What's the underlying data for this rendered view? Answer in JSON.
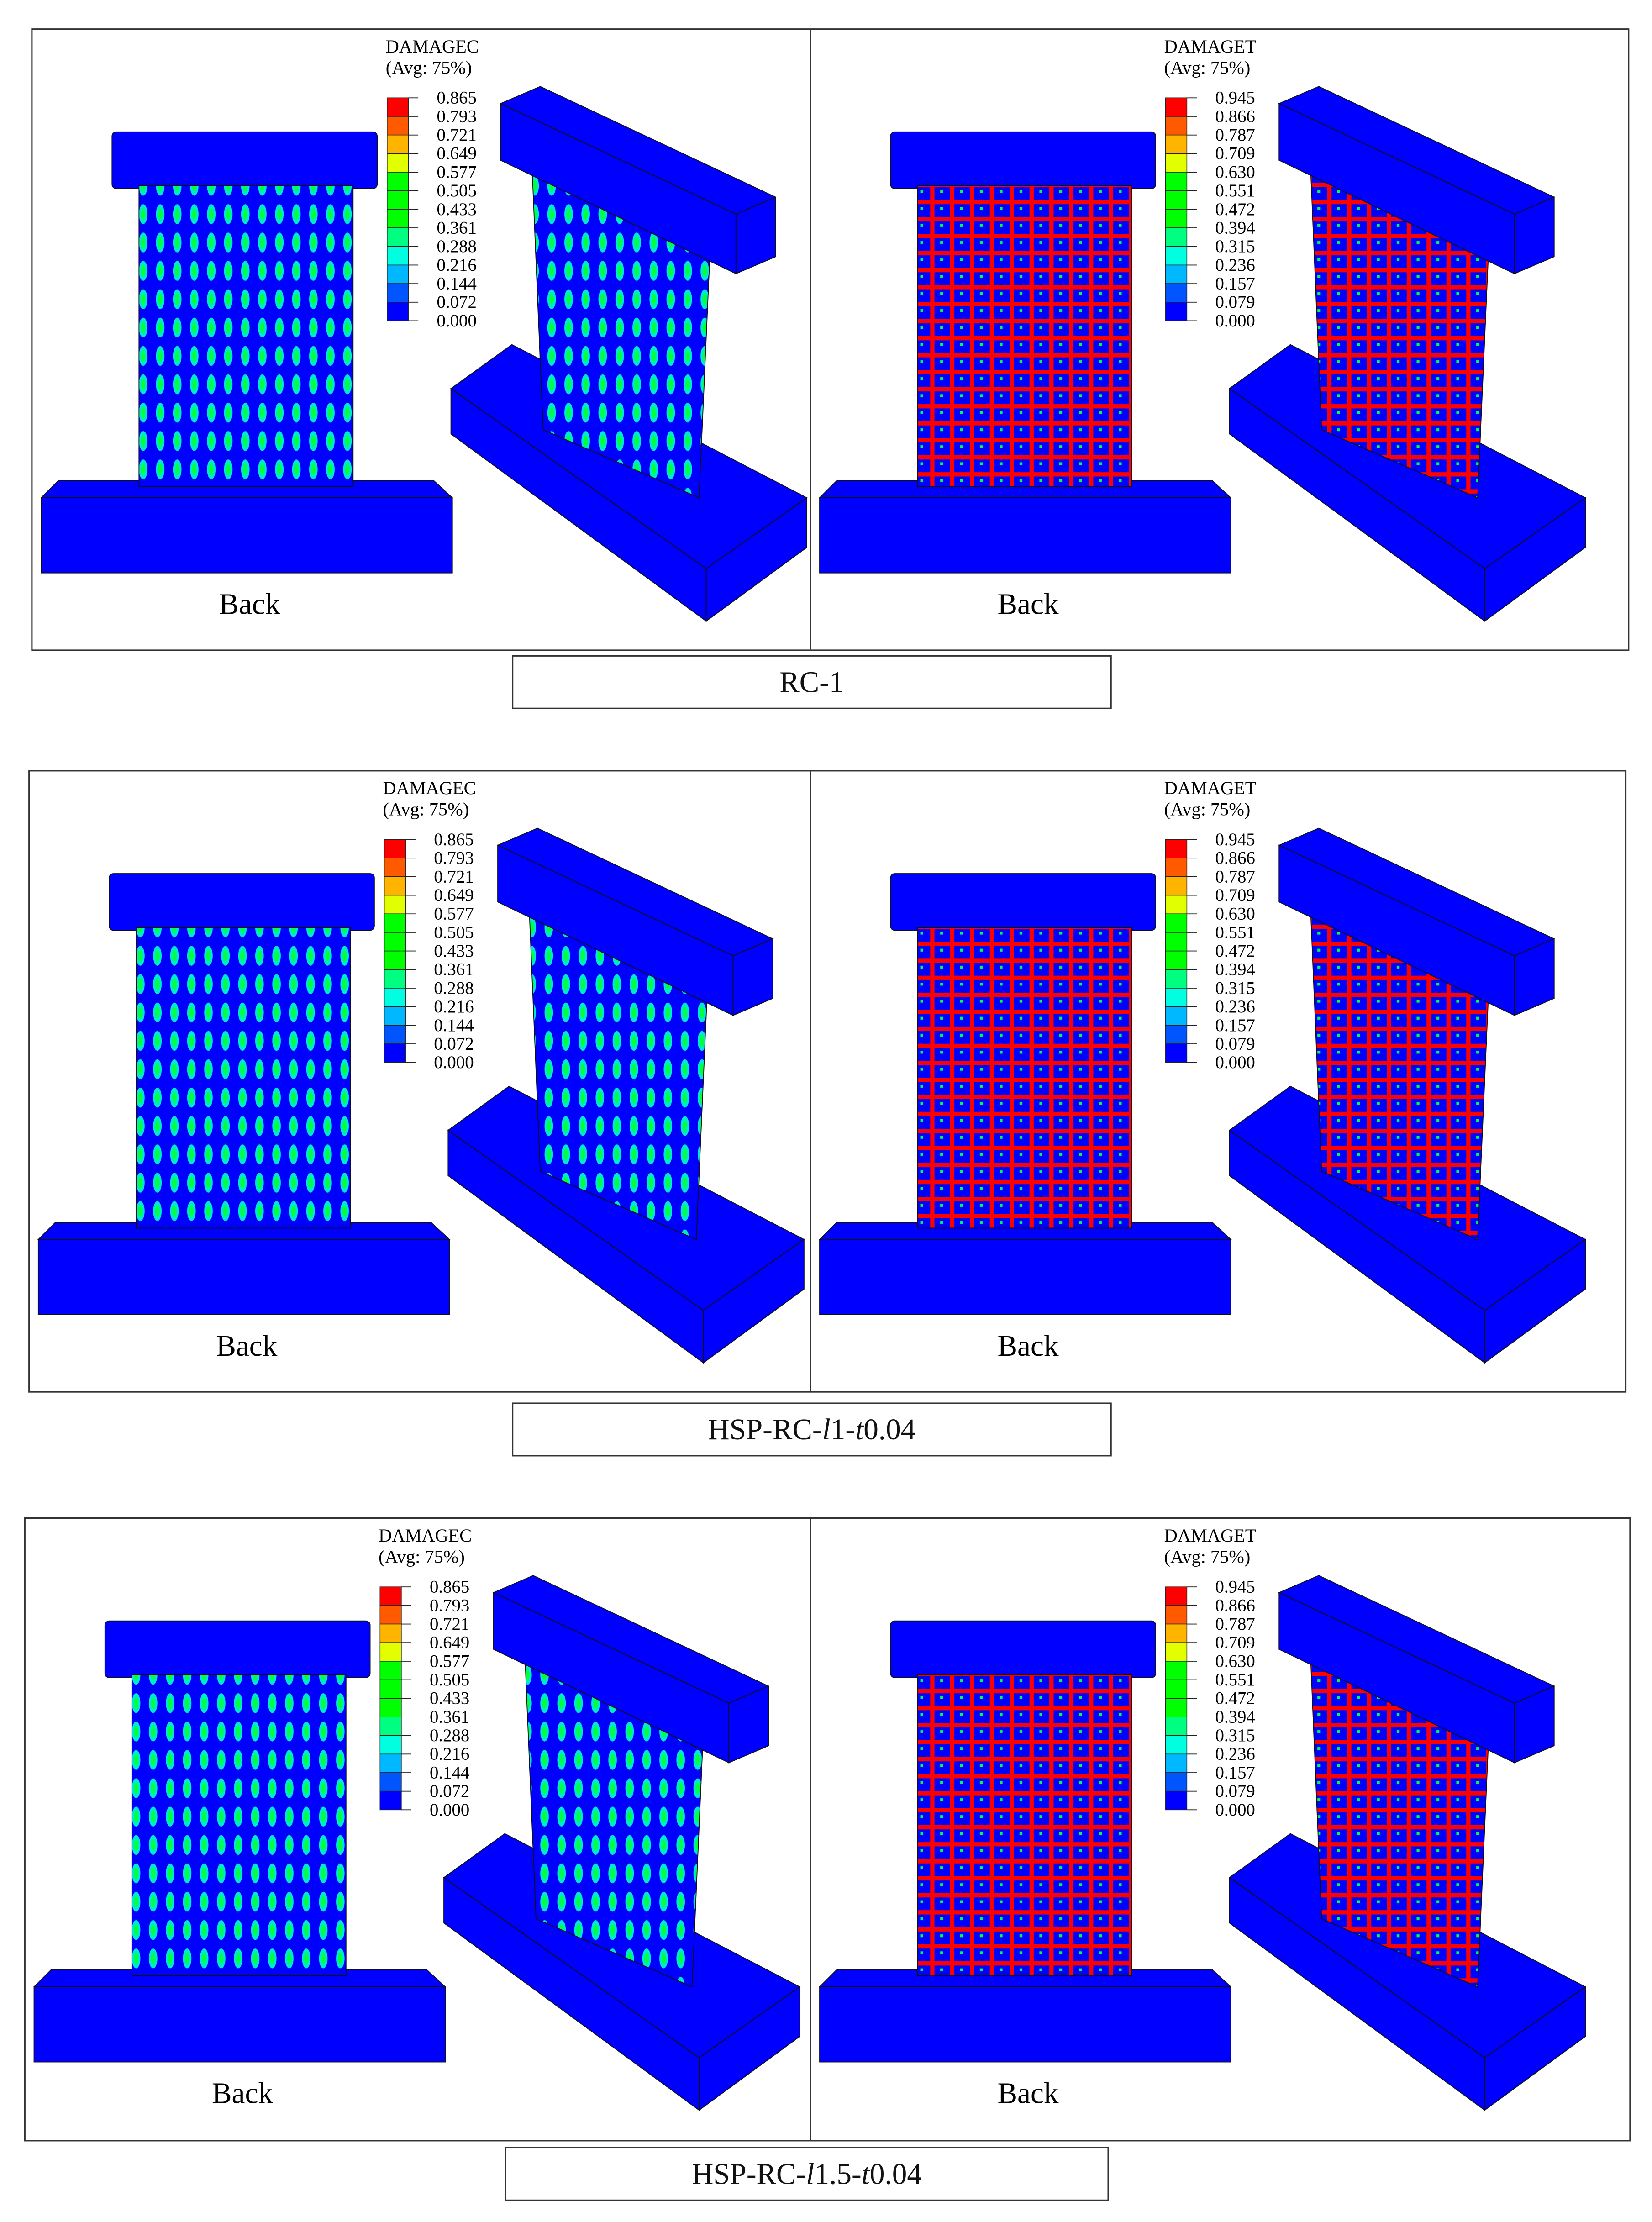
{
  "colors": {
    "legend": [
      "#ff0000",
      "#ff5a00",
      "#ffb400",
      "#e1ff00",
      "#00ff00",
      "#00ff00",
      "#00ff00",
      "#00ff80",
      "#00ffe0",
      "#00b8ff",
      "#0055ff",
      "#0000ff"
    ],
    "concrete": "#0000ff",
    "damage_c_primary": "#00ff40",
    "damage_c_secondary": "#00e8d0",
    "damage_t": "#ff0000"
  },
  "rows": [
    {
      "caption": [
        {
          "text": "RC-1",
          "italic": false
        }
      ],
      "panels": [
        {
          "type": "compression",
          "legend_title": "DAMAGEC",
          "legend_avg": "(Avg: 75%)",
          "legend_values": [
            "0.865",
            "0.793",
            "0.721",
            "0.649",
            "0.577",
            "0.505",
            "0.433",
            "0.361",
            "0.288",
            "0.216",
            "0.144",
            "0.072",
            "0.000"
          ],
          "view_label": "Back"
        },
        {
          "type": "tension",
          "legend_title": "DAMAGET",
          "legend_avg": "(Avg: 75%)",
          "legend_values": [
            "0.945",
            "0.866",
            "0.787",
            "0.709",
            "0.630",
            "0.551",
            "0.472",
            "0.394",
            "0.315",
            "0.236",
            "0.157",
            "0.079",
            "0.000"
          ],
          "view_label": "Back"
        }
      ]
    },
    {
      "caption": [
        {
          "text": "HSP-RC-",
          "italic": false
        },
        {
          "text": "l",
          "italic": true
        },
        {
          "text": "1-",
          "italic": false
        },
        {
          "text": "t",
          "italic": true
        },
        {
          "text": "0.04",
          "italic": false
        }
      ],
      "panels": [
        {
          "type": "compression",
          "legend_title": "DAMAGEC",
          "legend_avg": "(Avg: 75%)",
          "legend_values": [
            "0.865",
            "0.793",
            "0.721",
            "0.649",
            "0.577",
            "0.505",
            "0.433",
            "0.361",
            "0.288",
            "0.216",
            "0.144",
            "0.072",
            "0.000"
          ],
          "view_label": "Back"
        },
        {
          "type": "tension",
          "legend_title": "DAMAGET",
          "legend_avg": "(Avg: 75%)",
          "legend_values": [
            "0.945",
            "0.866",
            "0.787",
            "0.709",
            "0.630",
            "0.551",
            "0.472",
            "0.394",
            "0.315",
            "0.236",
            "0.157",
            "0.079",
            "0.000"
          ],
          "view_label": "Back"
        }
      ]
    },
    {
      "caption": [
        {
          "text": "HSP-RC-",
          "italic": false
        },
        {
          "text": "l",
          "italic": true
        },
        {
          "text": "1.5-",
          "italic": false
        },
        {
          "text": "t",
          "italic": true
        },
        {
          "text": "0.04",
          "italic": false
        }
      ],
      "panels": [
        {
          "type": "compression",
          "legend_title": "DAMAGEC",
          "legend_avg": "(Avg: 75%)",
          "legend_values": [
            "0.865",
            "0.793",
            "0.721",
            "0.649",
            "0.577",
            "0.505",
            "0.433",
            "0.361",
            "0.288",
            "0.216",
            "0.144",
            "0.072",
            "0.000"
          ],
          "view_label": "Back"
        },
        {
          "type": "tension",
          "legend_title": "DAMAGET",
          "legend_avg": "(Avg: 75%)",
          "legend_values": [
            "0.945",
            "0.866",
            "0.787",
            "0.709",
            "0.630",
            "0.551",
            "0.472",
            "0.394",
            "0.315",
            "0.236",
            "0.157",
            "0.079",
            "0.000"
          ],
          "view_label": "Back"
        }
      ]
    }
  ]
}
